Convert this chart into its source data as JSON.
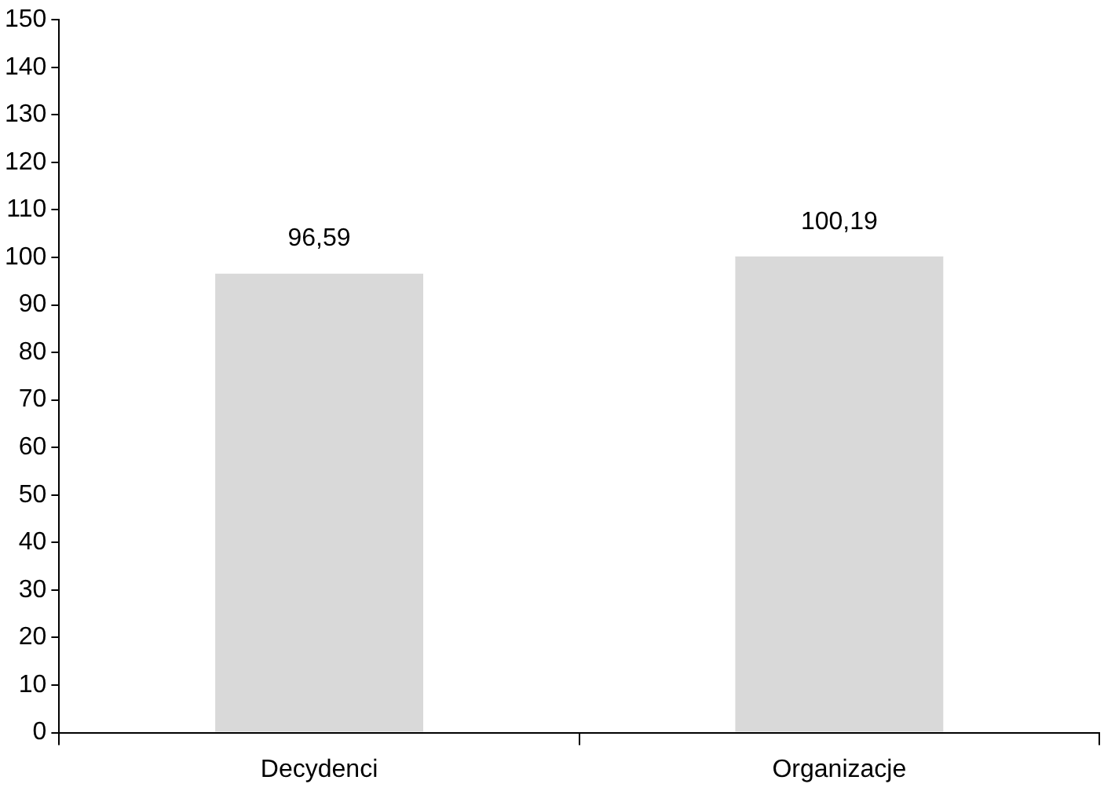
{
  "chart_data": {
    "type": "bar",
    "categories": [
      "Decydenci",
      "Organizacje"
    ],
    "values": [
      96.59,
      100.19
    ],
    "color": "#d9d9d9",
    "value_labels": [
      "96,59",
      "100,19"
    ],
    "ylim": [
      0,
      150
    ],
    "yticks": [
      0,
      10,
      20,
      30,
      40,
      50,
      60,
      70,
      80,
      90,
      100,
      110,
      120,
      130,
      140,
      150
    ],
    "grid": false,
    "legend": false
  }
}
